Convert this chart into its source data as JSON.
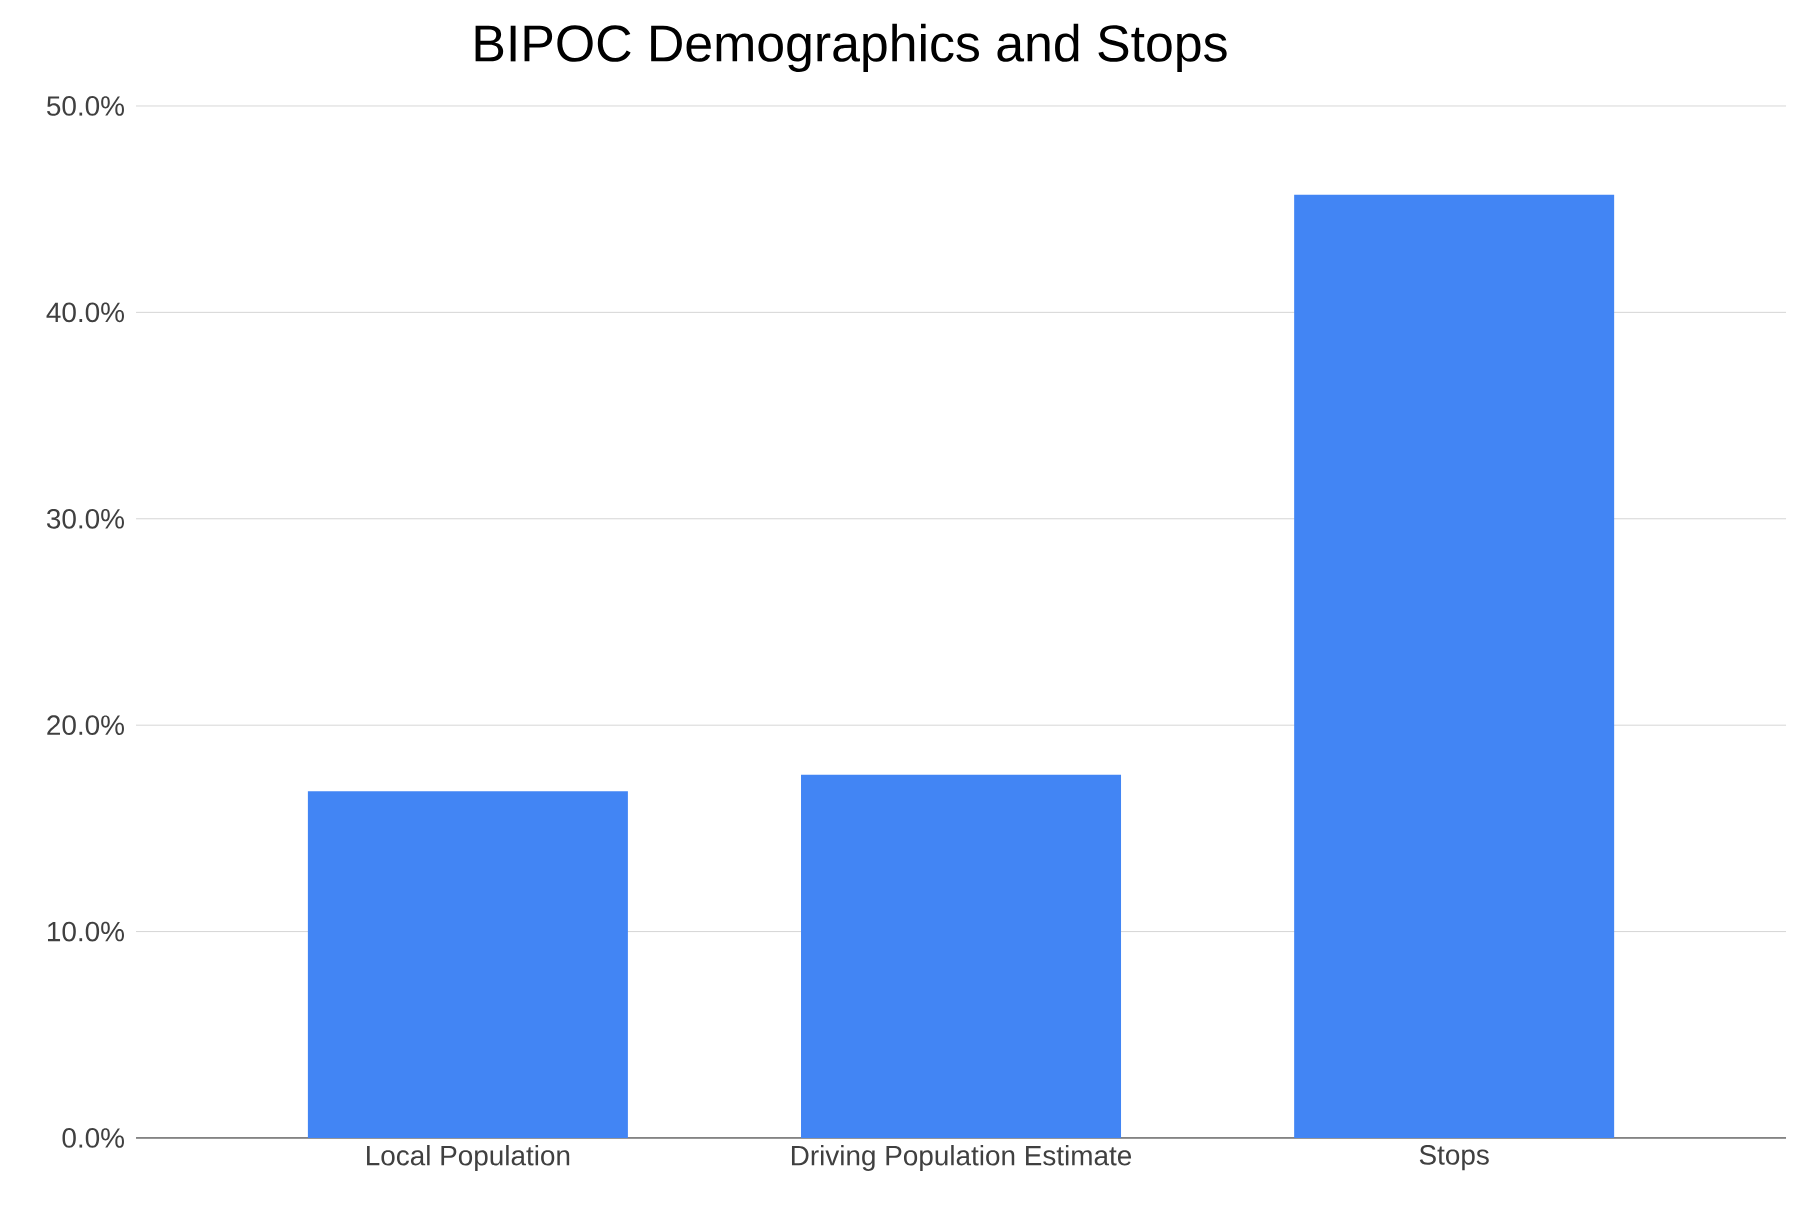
{
  "chart_data": {
    "type": "bar",
    "title": "BIPOC Demographics and Stops",
    "categories": [
      "Local Population",
      "Driving Population Estimate",
      "Stops"
    ],
    "values": [
      16.8,
      17.6,
      45.7
    ],
    "color": "#4285f4",
    "ylim": [
      0,
      50
    ],
    "yticks": [
      {
        "value": 0,
        "label": "0.0%"
      },
      {
        "value": 10,
        "label": "10.0%"
      },
      {
        "value": 20,
        "label": "20.0%"
      },
      {
        "value": 30,
        "label": "30.0%"
      },
      {
        "value": 40,
        "label": "40.0%"
      },
      {
        "value": 50,
        "label": "50.0%"
      }
    ],
    "grid": "y"
  }
}
